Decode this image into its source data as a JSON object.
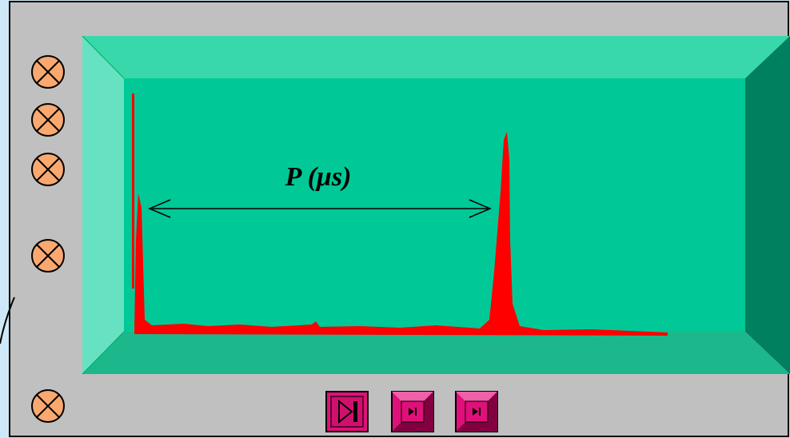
{
  "annotation": {
    "label": "P (μs)"
  }
}
